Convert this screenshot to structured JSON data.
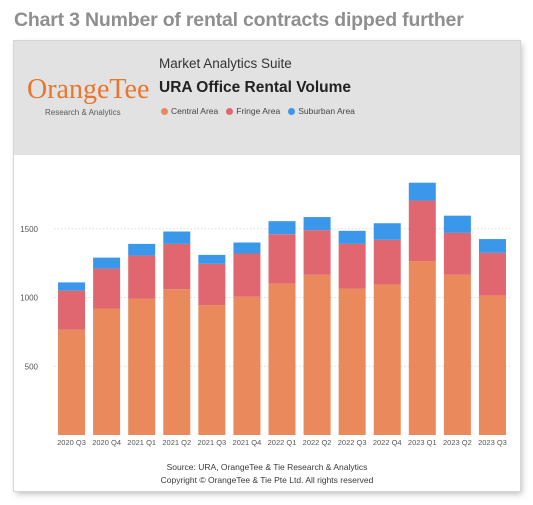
{
  "heading": "Chart 3 Number of rental contracts dipped further",
  "logo": {
    "name": "OrangeTee",
    "tagline": "Research & Analytics"
  },
  "suite": "Market Analytics Suite",
  "source": "Source: URA, OrangeTee & Tie Research & Analytics",
  "copyright": "Copyright © OrangeTee & Tie Pte Ltd. All rights reserved",
  "colors": {
    "central": "#ea8a5c",
    "fringe": "#e06770",
    "suburban": "#3a97ea",
    "grid": "#dcdcdc",
    "tick": "#555555"
  },
  "chart_data": {
    "type": "bar",
    "stacked": true,
    "title": "URA Office Rental Volume",
    "xlabel": "",
    "ylabel": "",
    "categories": [
      "2020 Q3",
      "2020 Q4",
      "2021 Q1",
      "2021 Q2",
      "2021 Q3",
      "2021 Q4",
      "2022 Q1",
      "2022 Q2",
      "2022 Q3",
      "2022 Q4",
      "2023 Q1",
      "2023 Q2",
      "2023 Q3"
    ],
    "series": [
      {
        "name": "Central Area",
        "values": [
          765,
          920,
          990,
          1060,
          945,
          1005,
          1100,
          1165,
          1065,
          1095,
          1265,
          1165,
          1015
        ]
      },
      {
        "name": "Fringe Area",
        "values": [
          285,
          290,
          315,
          330,
          300,
          315,
          360,
          325,
          325,
          325,
          440,
          305,
          310
        ]
      },
      {
        "name": "Suburban Area",
        "values": [
          60,
          80,
          85,
          90,
          65,
          80,
          95,
          95,
          95,
          120,
          130,
          125,
          100
        ]
      }
    ],
    "yticks": [
      500,
      1000,
      1500
    ],
    "ylim": [
      0,
      2000
    ],
    "grid": true,
    "legend": "top"
  }
}
